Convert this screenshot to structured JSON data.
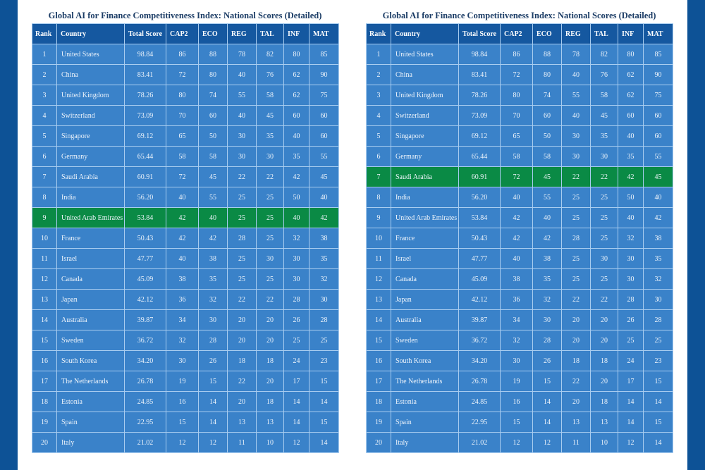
{
  "colors": {
    "side_bar": "#0d5296",
    "header_bg": "#1558a0",
    "row_bg": "#3a82c9",
    "highlight_bg": "#0a8a45",
    "title_text": "#1c3d66",
    "grid_line": "#a9cdf0"
  },
  "columns": [
    "Rank",
    "Country",
    "Total Score",
    "CAP2",
    "ECO",
    "REG",
    "TAL",
    "INF",
    "MAT"
  ],
  "rows": [
    {
      "rank": "1",
      "country": "United States",
      "total": "98.84",
      "cap2": "86",
      "eco": "88",
      "reg": "78",
      "tal": "82",
      "inf": "80",
      "mat": "85"
    },
    {
      "rank": "2",
      "country": "China",
      "total": "83.41",
      "cap2": "72",
      "eco": "80",
      "reg": "40",
      "tal": "76",
      "inf": "62",
      "mat": "90"
    },
    {
      "rank": "3",
      "country": "United Kingdom",
      "total": "78.26",
      "cap2": "80",
      "eco": "74",
      "reg": "55",
      "tal": "58",
      "inf": "62",
      "mat": "75"
    },
    {
      "rank": "4",
      "country": "Switzerland",
      "total": "73.09",
      "cap2": "70",
      "eco": "60",
      "reg": "40",
      "tal": "45",
      "inf": "60",
      "mat": "60"
    },
    {
      "rank": "5",
      "country": "Singapore",
      "total": "69.12",
      "cap2": "65",
      "eco": "50",
      "reg": "30",
      "tal": "35",
      "inf": "40",
      "mat": "60"
    },
    {
      "rank": "6",
      "country": "Germany",
      "total": "65.44",
      "cap2": "58",
      "eco": "58",
      "reg": "30",
      "tal": "30",
      "inf": "35",
      "mat": "55"
    },
    {
      "rank": "7",
      "country": "Saudi Arabia",
      "total": "60.91",
      "cap2": "72",
      "eco": "45",
      "reg": "22",
      "tal": "22",
      "inf": "42",
      "mat": "45"
    },
    {
      "rank": "8",
      "country": "India",
      "total": "56.20",
      "cap2": "40",
      "eco": "55",
      "reg": "25",
      "tal": "25",
      "inf": "50",
      "mat": "40"
    },
    {
      "rank": "9",
      "country": "United Arab Emirates",
      "total": "53.84",
      "cap2": "42",
      "eco": "40",
      "reg": "25",
      "tal": "25",
      "inf": "40",
      "mat": "42"
    },
    {
      "rank": "10",
      "country": "France",
      "total": "50.43",
      "cap2": "42",
      "eco": "42",
      "reg": "28",
      "tal": "25",
      "inf": "32",
      "mat": "38"
    },
    {
      "rank": "11",
      "country": "Israel",
      "total": "47.77",
      "cap2": "40",
      "eco": "38",
      "reg": "25",
      "tal": "30",
      "inf": "30",
      "mat": "35"
    },
    {
      "rank": "12",
      "country": "Canada",
      "total": "45.09",
      "cap2": "38",
      "eco": "35",
      "reg": "25",
      "tal": "25",
      "inf": "30",
      "mat": "32"
    },
    {
      "rank": "13",
      "country": "Japan",
      "total": "42.12",
      "cap2": "36",
      "eco": "32",
      "reg": "22",
      "tal": "22",
      "inf": "28",
      "mat": "30"
    },
    {
      "rank": "14",
      "country": "Australia",
      "total": "39.87",
      "cap2": "34",
      "eco": "30",
      "reg": "20",
      "tal": "20",
      "inf": "26",
      "mat": "28"
    },
    {
      "rank": "15",
      "country": "Sweden",
      "total": "36.72",
      "cap2": "32",
      "eco": "28",
      "reg": "20",
      "tal": "20",
      "inf": "25",
      "mat": "25"
    },
    {
      "rank": "16",
      "country": "South Korea",
      "total": "34.20",
      "cap2": "30",
      "eco": "26",
      "reg": "18",
      "tal": "18",
      "inf": "24",
      "mat": "23"
    },
    {
      "rank": "17",
      "country": "The Netherlands",
      "total": "26.78",
      "cap2": "19",
      "eco": "15",
      "reg": "22",
      "tal": "20",
      "inf": "17",
      "mat": "15"
    },
    {
      "rank": "18",
      "country": "Estonia",
      "total": "24.85",
      "cap2": "16",
      "eco": "14",
      "reg": "20",
      "tal": "18",
      "inf": "14",
      "mat": "14"
    },
    {
      "rank": "19",
      "country": "Spain",
      "total": "22.95",
      "cap2": "15",
      "eco": "14",
      "reg": "13",
      "tal": "13",
      "inf": "14",
      "mat": "15"
    },
    {
      "rank": "20",
      "country": "Italy",
      "total": "21.02",
      "cap2": "12",
      "eco": "12",
      "reg": "11",
      "tal": "10",
      "inf": "12",
      "mat": "14"
    }
  ],
  "panels": [
    {
      "title": "Global AI for Finance Competitiveness Index: National Scores (Detailed)",
      "highlight_rank": "9",
      "highlight_country": "United Arab Emirates"
    },
    {
      "title": "Global AI for Finance Competitiveness Index: National Scores (Detailed)",
      "highlight_rank": "7",
      "highlight_country": "Saudi Arabia"
    }
  ]
}
